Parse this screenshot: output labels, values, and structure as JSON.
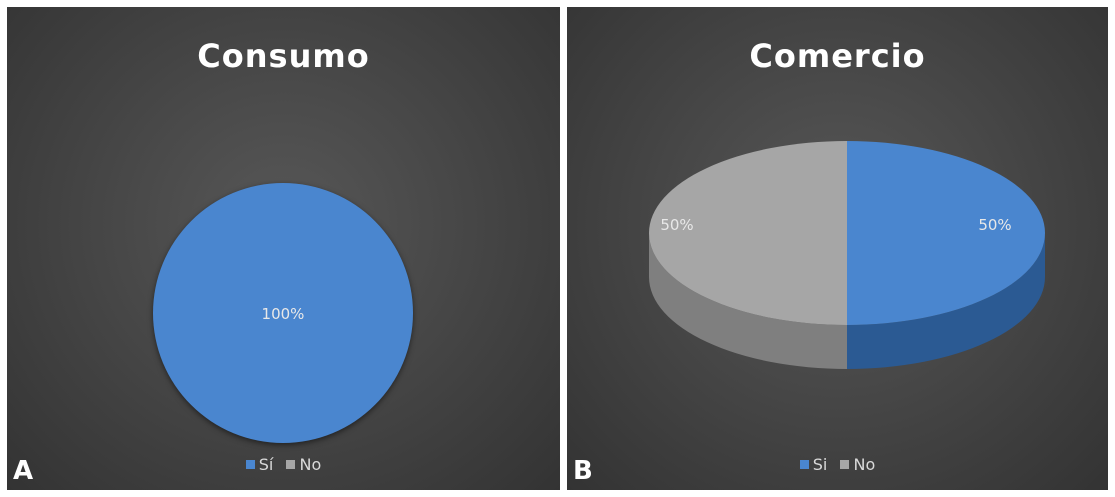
{
  "chart_data": [
    {
      "type": "pie",
      "title": "Consumo",
      "categories": [
        "Sí",
        "No"
      ],
      "values": [
        100,
        0
      ],
      "data_labels": [
        "100%",
        ""
      ],
      "colors": [
        "#4a86cf",
        "#a6a6a6"
      ],
      "legend": "bottom",
      "panel_label": "A"
    },
    {
      "type": "pie",
      "title": "Comercio",
      "categories": [
        "Si",
        "No"
      ],
      "values": [
        50,
        50
      ],
      "data_labels": [
        "50%",
        "50%"
      ],
      "colors": [
        "#4a86cf",
        "#a6a6a6"
      ],
      "legend": "bottom",
      "style": "3d",
      "panel_label": "B"
    }
  ]
}
